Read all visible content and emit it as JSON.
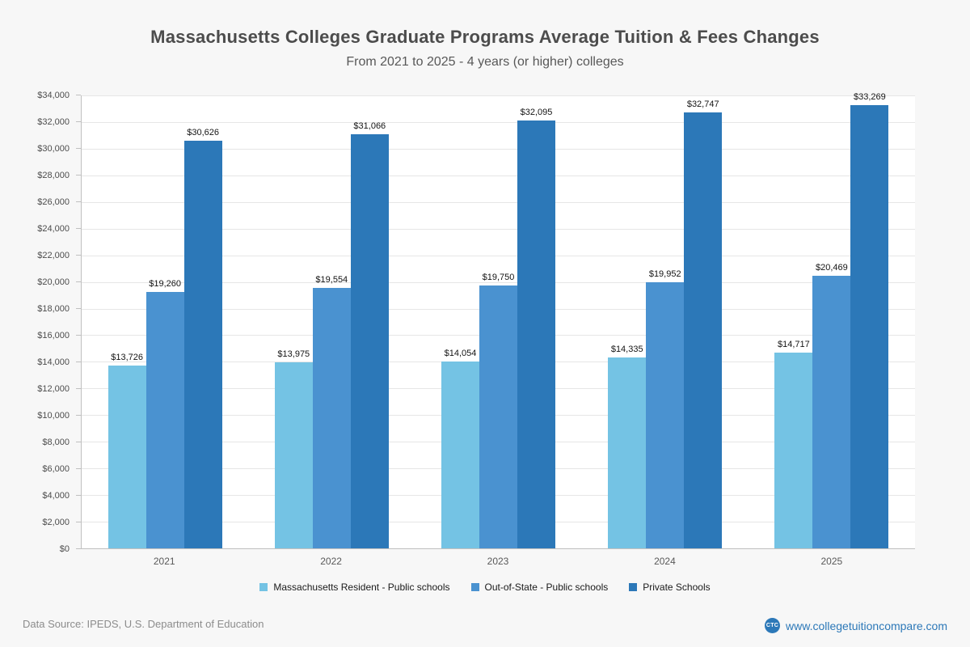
{
  "chart_data": {
    "type": "bar",
    "title": "Massachusetts Colleges Graduate Programs Average Tuition & Fees Changes",
    "subtitle": "From 2021 to 2025 - 4 years (or higher) colleges",
    "categories": [
      "2021",
      "2022",
      "2023",
      "2024",
      "2025"
    ],
    "series": [
      {
        "name": "Massachusetts Resident - Public schools",
        "color": "#74c3e4",
        "values": [
          13726,
          13975,
          14054,
          14335,
          14717
        ]
      },
      {
        "name": "Out-of-State - Public schools",
        "color": "#4a92d0",
        "values": [
          19260,
          19554,
          19750,
          19952,
          20469
        ]
      },
      {
        "name": "Private Schools",
        "color": "#2c78b8",
        "values": [
          30626,
          31066,
          32095,
          32747,
          33269
        ]
      }
    ],
    "ylim": [
      0,
      34000
    ],
    "ytick_step": 2000,
    "value_prefix": "$",
    "grid": true,
    "legend_position": "bottom"
  },
  "footer": {
    "source": "Data Source: IPEDS, U.S. Department of Education",
    "website": "www.collegetuitioncompare.com",
    "logo_text": "CTC",
    "brand_color": "#2c78b8"
  }
}
